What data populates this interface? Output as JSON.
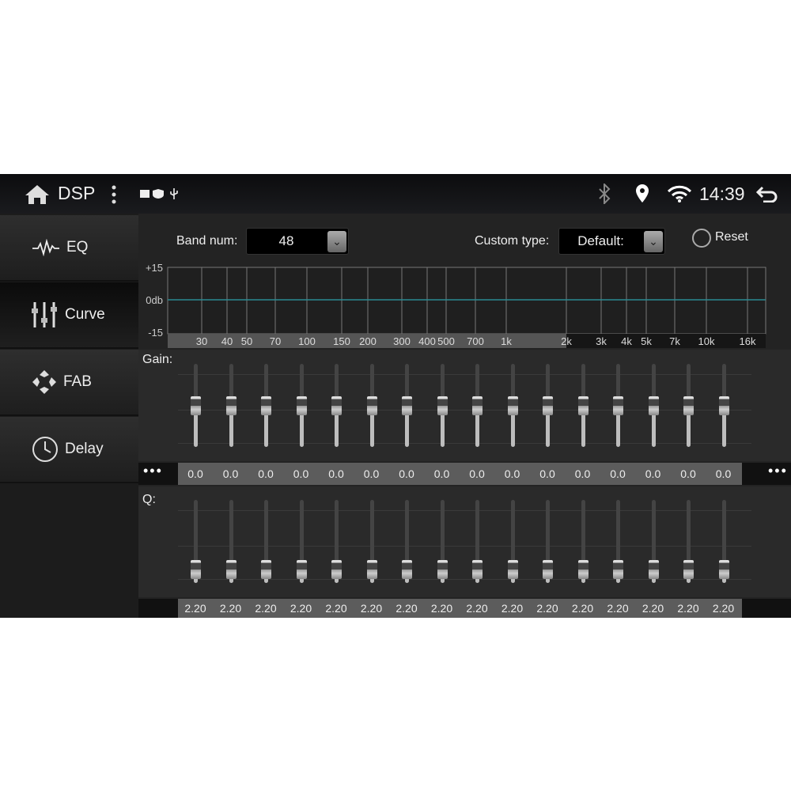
{
  "status_bar": {
    "title": "DSP",
    "time": "14:39",
    "icons": [
      "home-icon",
      "more-vert-icon",
      "image-icon",
      "shield-play-icon",
      "usb-icon",
      "bluetooth-icon",
      "location-icon",
      "wifi-icon",
      "back-icon"
    ]
  },
  "sidebar": {
    "items": [
      {
        "label": "EQ",
        "icon": "waveform-icon"
      },
      {
        "label": "Curve",
        "icon": "sliders-icon",
        "selected": true
      },
      {
        "label": "FAB",
        "icon": "fader-balance-icon"
      },
      {
        "label": "Delay",
        "icon": "clock-icon"
      }
    ]
  },
  "controls": {
    "band_num_label": "Band num:",
    "band_num_value": "48",
    "custom_type_label": "Custom type:",
    "custom_type_value": "Default:",
    "reset_label": "Reset"
  },
  "curve": {
    "y_labels": [
      "+15",
      "0db",
      "-15"
    ],
    "freq_labels": [
      "30",
      "40",
      "50",
      "70",
      "100",
      "150",
      "200",
      "300",
      "400",
      "500",
      "700",
      "1k",
      "2k",
      "3k",
      "4k",
      "5k",
      "7k",
      "10k",
      "16k"
    ],
    "line_color": "#2a8a92"
  },
  "gain": {
    "label": "Gain:",
    "more": "•••",
    "range": [
      -15,
      15
    ],
    "values": [
      "0.0",
      "0.0",
      "0.0",
      "0.0",
      "0.0",
      "0.0",
      "0.0",
      "0.0",
      "0.0",
      "0.0",
      "0.0",
      "0.0",
      "0.0",
      "0.0",
      "0.0",
      "0.0"
    ]
  },
  "q": {
    "label": "Q:",
    "values": [
      "2.20",
      "2.20",
      "2.20",
      "2.20",
      "2.20",
      "2.20",
      "2.20",
      "2.20",
      "2.20",
      "2.20",
      "2.20",
      "2.20",
      "2.20",
      "2.20",
      "2.20",
      "2.20"
    ]
  }
}
